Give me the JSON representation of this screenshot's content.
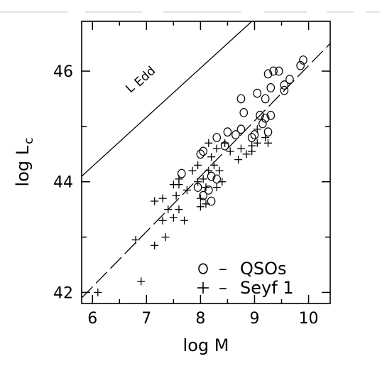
{
  "chart_data": {
    "type": "scatter",
    "xlabel": "log M",
    "ylabel": "log L",
    "ylabel_sub": "c",
    "xlim": [
      5.8,
      10.4
    ],
    "ylim": [
      41.8,
      46.9
    ],
    "x_ticks": [
      "6",
      "7",
      "8",
      "9",
      "10"
    ],
    "y_ticks": [
      "42",
      "44",
      "46"
    ],
    "x_tick_values": [
      6,
      7,
      8,
      9,
      10
    ],
    "y_tick_values": [
      42,
      44,
      46
    ],
    "annotations": [
      {
        "text": "L",
        "x": 6.7,
        "y": 45.6
      },
      {
        "text": "Edd",
        "x": 6.95,
        "y": 45.75
      }
    ],
    "legend": {
      "position": "bottom-right",
      "entries": [
        {
          "marker": "o",
          "dash": "–",
          "label": "QSOs"
        },
        {
          "marker": "+",
          "dash": "–",
          "label": "Seyf 1"
        }
      ]
    },
    "lines": [
      {
        "kind": "eddington",
        "style": "solid",
        "points": [
          [
            5.8,
            44.1
          ],
          [
            8.95,
            46.9
          ]
        ]
      },
      {
        "kind": "fit",
        "style": "dashed",
        "points": [
          [
            5.8,
            41.9
          ],
          [
            10.4,
            46.5
          ]
        ]
      }
    ],
    "series": [
      {
        "marker": "circle",
        "points": [
          [
            9.9,
            46.2
          ],
          [
            9.85,
            46.1
          ],
          [
            9.65,
            45.85
          ],
          [
            9.55,
            45.75
          ],
          [
            9.55,
            45.65
          ],
          [
            9.45,
            46.0
          ],
          [
            9.35,
            46.0
          ],
          [
            9.25,
            45.95
          ],
          [
            9.3,
            45.7
          ],
          [
            9.2,
            45.5
          ],
          [
            9.05,
            45.6
          ],
          [
            8.75,
            45.5
          ],
          [
            8.8,
            45.25
          ],
          [
            9.1,
            45.2
          ],
          [
            9.2,
            45.15
          ],
          [
            9.3,
            45.2
          ],
          [
            9.15,
            45.05
          ],
          [
            9.25,
            44.9
          ],
          [
            9.0,
            44.85
          ],
          [
            8.95,
            44.8
          ],
          [
            8.75,
            44.95
          ],
          [
            8.65,
            44.85
          ],
          [
            8.5,
            44.9
          ],
          [
            8.3,
            44.8
          ],
          [
            8.45,
            44.65
          ],
          [
            8.05,
            44.55
          ],
          [
            8.0,
            44.5
          ],
          [
            7.65,
            44.15
          ],
          [
            8.2,
            44.1
          ],
          [
            8.3,
            44.05
          ],
          [
            8.15,
            43.85
          ],
          [
            8.05,
            43.75
          ],
          [
            8.2,
            43.65
          ],
          [
            7.95,
            43.9
          ]
        ]
      },
      {
        "marker": "plus",
        "points": [
          [
            6.1,
            42.0
          ],
          [
            6.9,
            42.2
          ],
          [
            6.8,
            42.95
          ],
          [
            7.15,
            42.85
          ],
          [
            7.35,
            43.0
          ],
          [
            7.3,
            43.3
          ],
          [
            7.5,
            43.35
          ],
          [
            7.4,
            43.5
          ],
          [
            7.6,
            43.5
          ],
          [
            7.7,
            43.3
          ],
          [
            7.15,
            43.65
          ],
          [
            7.3,
            43.7
          ],
          [
            7.55,
            43.75
          ],
          [
            7.5,
            43.95
          ],
          [
            7.6,
            44.05
          ],
          [
            7.75,
            43.85
          ],
          [
            7.85,
            44.2
          ],
          [
            7.95,
            44.3
          ],
          [
            7.95,
            44.0
          ],
          [
            8.05,
            44.05
          ],
          [
            8.1,
            43.9
          ],
          [
            8.15,
            44.2
          ],
          [
            8.25,
            44.3
          ],
          [
            8.35,
            44.2
          ],
          [
            8.4,
            44.0
          ],
          [
            8.3,
            43.9
          ],
          [
            8.0,
            43.7
          ],
          [
            8.1,
            43.6
          ],
          [
            8.2,
            44.45
          ],
          [
            8.3,
            44.6
          ],
          [
            8.45,
            44.7
          ],
          [
            8.55,
            44.55
          ],
          [
            8.7,
            44.4
          ],
          [
            8.75,
            44.6
          ],
          [
            8.85,
            44.5
          ],
          [
            8.95,
            44.55
          ],
          [
            9.05,
            44.7
          ],
          [
            9.2,
            44.8
          ],
          [
            9.25,
            44.7
          ],
          [
            8.95,
            44.65
          ],
          [
            9.05,
            44.95
          ],
          [
            8.15,
            44.7
          ],
          [
            7.6,
            43.95
          ],
          [
            8.0,
            43.55
          ]
        ]
      }
    ]
  }
}
